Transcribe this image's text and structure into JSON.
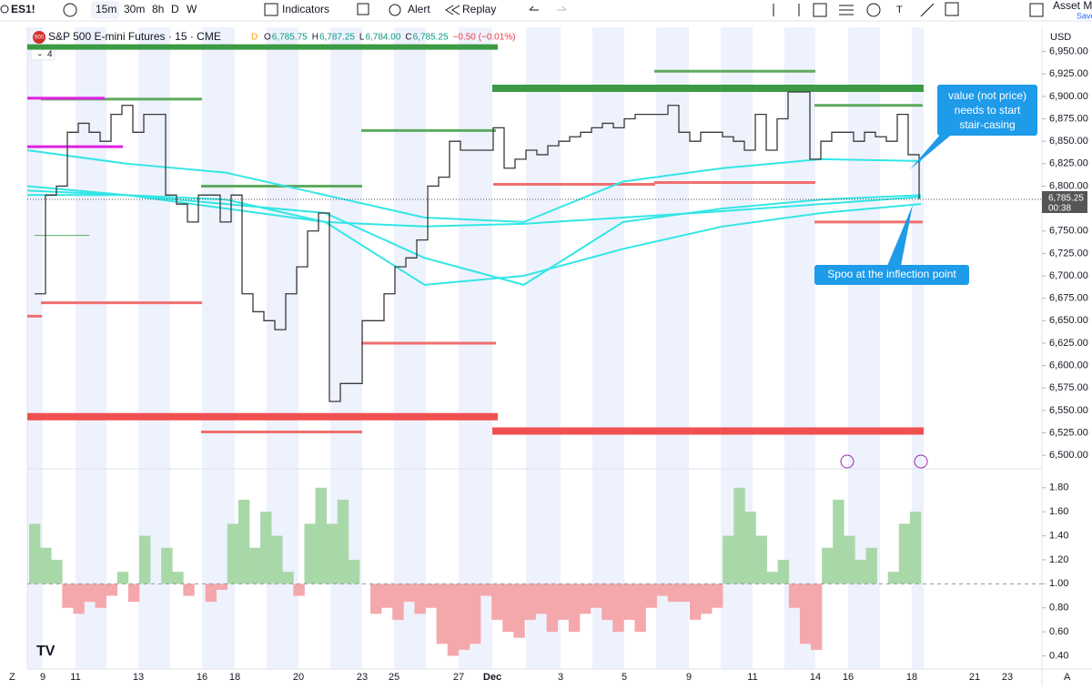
{
  "toolbar": {
    "symbol": "ES1!",
    "intervals": [
      "15m",
      "30m",
      "8h",
      "D",
      "W"
    ],
    "indicators": "Indicators",
    "alert": "Alert",
    "replay": "Replay",
    "account": "Asset Mo",
    "save": "Save"
  },
  "legend": {
    "badge": "500",
    "title": "S&P 500 E-mini Futures · 15 · CME",
    "flag": "D",
    "o_label": "O",
    "o": "6,785.75",
    "h_label": "H",
    "h": "6,787.25",
    "l_label": "L",
    "l": "6,784.00",
    "c_label": "C",
    "c": "6,785.25",
    "change": "−0.50 (−0.01%)",
    "indicator_count": "4"
  },
  "price_axis": {
    "currency": "USD",
    "ylim": [
      6490,
      6977
    ],
    "yticks": [
      {
        "value": 6950,
        "label": "6,950.00"
      },
      {
        "value": 6925,
        "label": "6,925.00"
      },
      {
        "value": 6900,
        "label": "6,900.00"
      },
      {
        "value": 6875,
        "label": "6,875.00"
      },
      {
        "value": 6850,
        "label": "6,850.00"
      },
      {
        "value": 6825,
        "label": "6,825.00"
      },
      {
        "value": 6800,
        "label": "6,800.00"
      },
      {
        "value": 6750,
        "label": "6,750.00"
      },
      {
        "value": 6725,
        "label": "6,725.00"
      },
      {
        "value": 6700,
        "label": "6,700.00"
      },
      {
        "value": 6675,
        "label": "6,675.00"
      },
      {
        "value": 6650,
        "label": "6,650.00"
      },
      {
        "value": 6625,
        "label": "6,625.00"
      },
      {
        "value": 6600,
        "label": "6,600.00"
      },
      {
        "value": 6575,
        "label": "6,575.00"
      },
      {
        "value": 6550,
        "label": "6,550.00"
      },
      {
        "value": 6525,
        "label": "6,525.00"
      },
      {
        "value": 6500,
        "label": "6,500.00"
      }
    ],
    "last": {
      "value": 6785.25,
      "label": "6,785.25",
      "countdown": "00:38"
    }
  },
  "price": [
    6680,
    6790,
    6800,
    6860,
    6870,
    6860,
    6850,
    6880,
    6890,
    6860,
    6880,
    6880,
    6790,
    6780,
    6760,
    6790,
    6790,
    6760,
    6790,
    6680,
    6660,
    6650,
    6640,
    6680,
    6710,
    6750,
    6770,
    6560,
    6580,
    6580,
    6650,
    6650,
    6680,
    6710,
    6720,
    6740,
    6800,
    6810,
    6850,
    6840,
    6840,
    6840,
    6865,
    6820,
    6830,
    6840,
    6835,
    6845,
    6850,
    6855,
    6860,
    6865,
    6870,
    6865,
    6875,
    6880,
    6880,
    6880,
    6890,
    6860,
    6850,
    6860,
    6860,
    6855,
    6850,
    6840,
    6880,
    6840,
    6875,
    6905,
    6905,
    6830,
    6850,
    6860,
    6860,
    6850,
    6860,
    6855,
    6850,
    6880,
    6835,
    6785.25
  ],
  "bands": [
    [
      6840,
      6825,
      6815,
      6790,
      6765,
      6760,
      6805,
      6820,
      6830,
      6828
    ],
    [
      6790,
      6790,
      6780,
      6770,
      6720,
      6690,
      6760,
      6775,
      6785,
      6790
    ],
    [
      6800,
      6790,
      6785,
      6760,
      6755,
      6758,
      6765,
      6772,
      6780,
      6788
    ],
    [
      6795,
      6790,
      6775,
      6760,
      6690,
      6700,
      6730,
      6755,
      6770,
      6780
    ]
  ],
  "band_color": "#33e6e6",
  "levels": [
    {
      "price": 6955,
      "color": "#3c9a44"
    },
    {
      "price": 6909,
      "color": "#3c9a44"
    },
    {
      "price": 6928,
      "color": "#5cab5e"
    },
    {
      "price": 6897,
      "color": "#5cab5e"
    },
    {
      "price": 6890,
      "color": "#5cab5e"
    },
    {
      "price": 6862,
      "color": "#5cab5e"
    },
    {
      "price": 6800,
      "color": "#5cab5e"
    },
    {
      "price": 6898,
      "color": "#e020e0"
    },
    {
      "price": 6844,
      "color": "#e020e0"
    },
    {
      "price": 6802,
      "color": "#ef7070"
    },
    {
      "price": 6804,
      "color": "#ef7070"
    },
    {
      "price": 6670,
      "color": "#ef7070"
    },
    {
      "price": 6655,
      "color": "#ef7070"
    },
    {
      "price": 6625,
      "color": "#ef7070"
    },
    {
      "price": 6760,
      "color": "#ef7070"
    },
    {
      "price": 6543,
      "color": "#f05050"
    },
    {
      "price": 6527,
      "color": "#f05050"
    },
    {
      "price": 6526,
      "color": "#ef7070"
    },
    {
      "price": 6745,
      "color": "#5cab5e"
    }
  ],
  "oscillator": {
    "ylim": [
      0.29,
      1.95
    ],
    "baseline": 1,
    "yticks": [
      {
        "value": 1.8,
        "label": "1.80"
      },
      {
        "value": 1.6,
        "label": "1.60"
      },
      {
        "value": 1.4,
        "label": "1.40"
      },
      {
        "value": 1.2,
        "label": "1.20"
      },
      {
        "value": 1,
        "label": "1.00"
      },
      {
        "value": 0.8,
        "label": "0.80"
      },
      {
        "value": 0.6,
        "label": "0.60"
      },
      {
        "value": 0.4,
        "label": "0.40"
      }
    ],
    "values": [
      1.5,
      1.3,
      1.2,
      0.8,
      0.75,
      0.85,
      0.8,
      0.9,
      1.1,
      0.85,
      1.4,
      1.0,
      1.3,
      1.1,
      0.9,
      1.0,
      0.85,
      0.95,
      1.5,
      1.7,
      1.3,
      1.6,
      1.4,
      1.1,
      0.9,
      1.5,
      1.8,
      1.5,
      1.7,
      1.2,
      1.0,
      0.75,
      0.8,
      0.7,
      0.85,
      0.75,
      0.8,
      0.5,
      0.4,
      0.45,
      0.5,
      0.9,
      0.7,
      0.6,
      0.55,
      0.7,
      0.75,
      0.6,
      0.7,
      0.6,
      0.75,
      0.8,
      0.7,
      0.6,
      0.7,
      0.6,
      0.8,
      0.9,
      0.85,
      0.85,
      0.7,
      0.75,
      0.8,
      1.4,
      1.8,
      1.6,
      1.4,
      1.1,
      1.2,
      0.8,
      0.5,
      0.45,
      1.3,
      1.7,
      1.4,
      1.2,
      1.3,
      1.0,
      1.1,
      1.5,
      1.6
    ],
    "up_color": "#a8d8a8",
    "down_color": "#f4a8ac"
  },
  "dates": [
    "9",
    "11",
    "13",
    "16",
    "18",
    "20",
    "23",
    "25",
    "27",
    "Dec",
    "3",
    "5",
    "9",
    "11",
    "14",
    "16",
    "18",
    "21",
    "23"
  ],
  "corner_left": "Z",
  "corner_right": "A",
  "annotations": {
    "stair": [
      "value (not price)",
      "needs to start",
      "stair-casing"
    ],
    "spoo": "Spoo at the inflection point"
  }
}
